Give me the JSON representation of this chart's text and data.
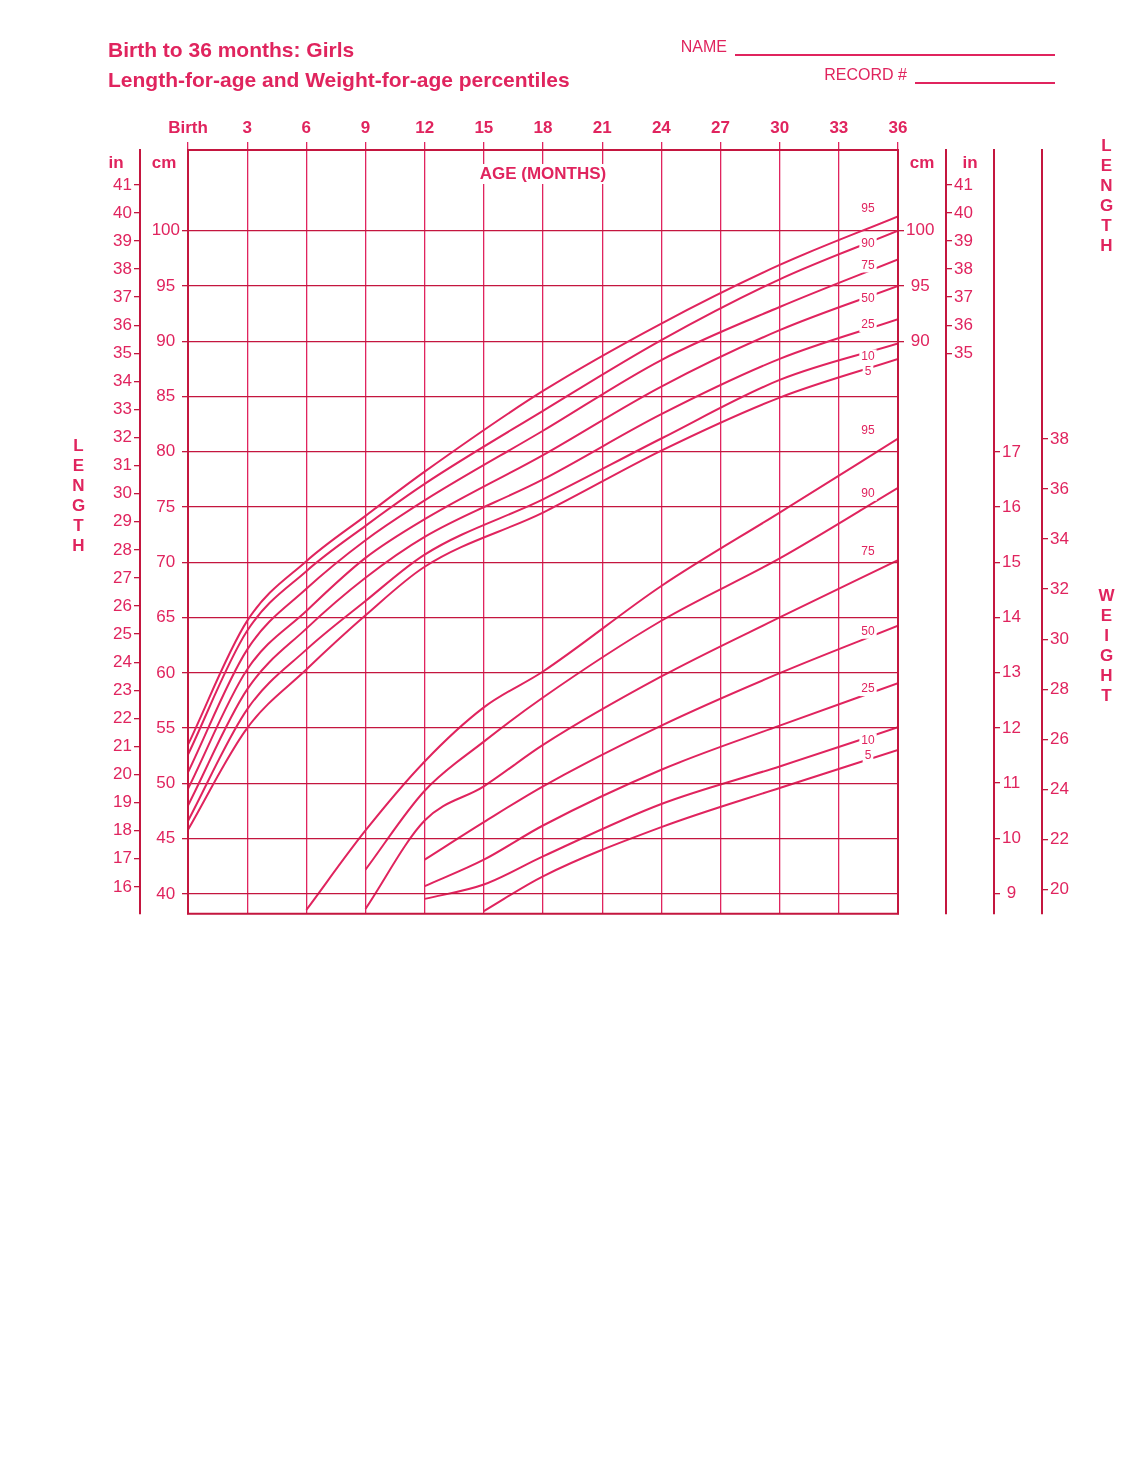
{
  "chart_data": [
    {
      "type": "line",
      "title": "Birth to 36 months: Girls",
      "subtitle": "Length-for-age and Weight-for-age percentiles",
      "xlabel": "AGE (MONTHS)",
      "ylabel": "cm",
      "y3label": "in",
      "y2label": "cm",
      "annotations": [
        "NAME",
        "RECORD #",
        "LENGTH"
      ],
      "xlim": [
        0,
        36
      ],
      "xticks": [
        {
          "value": 0,
          "label": "Birth"
        },
        3,
        6,
        9,
        12,
        15,
        18,
        21,
        24,
        27,
        30,
        33,
        36
      ],
      "ylim": [
        38.2,
        107.3
      ],
      "yticks": [
        40,
        45,
        50,
        55,
        60,
        65,
        70,
        75,
        80,
        85,
        90,
        95,
        100
      ],
      "y3lim": [
        15.04,
        42.24
      ],
      "y3ticks": [
        16,
        17,
        18,
        19,
        20,
        21,
        22,
        23,
        24,
        25,
        26,
        27,
        28,
        29,
        30,
        31,
        32,
        33,
        34,
        35,
        36,
        37,
        38,
        39,
        40,
        41
      ],
      "y2lim": [
        38.2,
        107.3
      ],
      "y2ticks": [
        90,
        95,
        100
      ],
      "grid": true,
      "legend": false,
      "marker": "none",
      "line_style": "solid",
      "series": [
        {
          "name": "95",
          "color": "#e0245e",
          "x": [
            0,
            3,
            6,
            9,
            12,
            18,
            24,
            30,
            36
          ],
          "values": [
            53.5,
            64.7,
            70.1,
            74.2,
            78.2,
            85.5,
            91.6,
            96.9,
            101.3
          ]
        },
        {
          "name": "90",
          "color": "#e0245e",
          "x": [
            0,
            3,
            6,
            9,
            12,
            18,
            24,
            30,
            36
          ],
          "values": [
            52.6,
            63.8,
            69.2,
            73.3,
            77.1,
            83.7,
            90.1,
            95.6,
            100.0
          ]
        },
        {
          "name": "75",
          "color": "#e0245e",
          "x": [
            0,
            3,
            6,
            9,
            12,
            18,
            24,
            30,
            36
          ],
          "values": [
            51.0,
            62.1,
            67.6,
            72.0,
            75.6,
            81.9,
            88.3,
            93.1,
            97.4
          ]
        },
        {
          "name": "50",
          "color": "#e0245e",
          "x": [
            0,
            3,
            6,
            9,
            12,
            18,
            24,
            30,
            36
          ],
          "values": [
            49.5,
            60.3,
            65.6,
            70.4,
            73.9,
            79.7,
            85.9,
            91.0,
            95.0
          ]
        },
        {
          "name": "25",
          "color": "#e0245e",
          "x": [
            0,
            3,
            6,
            9,
            12,
            18,
            24,
            30,
            36
          ],
          "values": [
            48.0,
            58.5,
            64.0,
            68.6,
            72.3,
            77.5,
            83.4,
            88.4,
            92.0
          ]
        },
        {
          "name": "10",
          "color": "#e0245e",
          "x": [
            0,
            3,
            6,
            9,
            12,
            18,
            24,
            30,
            36
          ],
          "values": [
            46.6,
            56.7,
            62.1,
            66.5,
            70.7,
            75.7,
            81.2,
            86.5,
            89.8
          ]
        },
        {
          "name": "5",
          "color": "#e0245e",
          "x": [
            0,
            3,
            6,
            9,
            12,
            18,
            24,
            30,
            36
          ],
          "values": [
            45.8,
            55.0,
            60.3,
            65.2,
            69.6,
            74.5,
            80.1,
            84.9,
            88.4
          ]
        }
      ]
    },
    {
      "type": "line",
      "y3label": "in",
      "annotations": [
        "LENGTH",
        "WEIGHT"
      ],
      "tick_labels": "y",
      "xlim": [
        0,
        36
      ],
      "ylim": [
        8.63,
        22.47
      ],
      "yticks": [
        9,
        10,
        11,
        12,
        13,
        14,
        15,
        16,
        17
      ],
      "y2lim": [
        19.03,
        49.54
      ],
      "y2ticks": [
        20,
        22,
        24,
        26,
        28,
        30,
        32,
        34,
        36,
        38
      ],
      "y3lim": [
        15.04,
        42.24
      ],
      "y3ticks": [
        35,
        36,
        37,
        38,
        39,
        40,
        41
      ],
      "legend": false,
      "marker": "none",
      "line_style": "solid",
      "series": [
        {
          "name": "95",
          "color": "#e0245e",
          "x": [
            6,
            9,
            12,
            15,
            18,
            24,
            30,
            36
          ],
          "values": [
            8.7,
            10.14,
            11.39,
            12.37,
            13.02,
            14.57,
            15.9,
            17.24
          ]
        },
        {
          "name": "90",
          "color": "#e0245e",
          "x": [
            9,
            12,
            15,
            18,
            24,
            30,
            36
          ],
          "values": [
            9.43,
            10.86,
            11.75,
            12.55,
            13.94,
            15.07,
            16.35
          ]
        },
        {
          "name": "75",
          "color": "#e0245e",
          "x": [
            9,
            12,
            15,
            18,
            24,
            30,
            36
          ],
          "values": [
            8.72,
            10.32,
            10.94,
            11.69,
            12.93,
            14.0,
            15.04
          ]
        },
        {
          "name": "50",
          "color": "#e0245e",
          "x": [
            12,
            15,
            18,
            24,
            30,
            36
          ],
          "values": [
            9.61,
            10.29,
            10.94,
            12.04,
            12.99,
            13.85
          ]
        },
        {
          "name": "25",
          "color": "#e0245e",
          "x": [
            12,
            15,
            18,
            24,
            30,
            36
          ],
          "values": [
            9.13,
            9.61,
            10.23,
            11.24,
            12.04,
            12.81
          ]
        },
        {
          "name": "10",
          "color": "#e0245e",
          "x": [
            12,
            15,
            18,
            24,
            30,
            36
          ],
          "values": [
            8.9,
            9.16,
            9.67,
            10.62,
            11.3,
            12.01
          ]
        },
        {
          "name": "5",
          "color": "#e0245e",
          "x": [
            15,
            18,
            24,
            30,
            36
          ],
          "values": [
            8.68,
            9.31,
            10.2,
            10.91,
            11.6
          ]
        }
      ]
    }
  ]
}
